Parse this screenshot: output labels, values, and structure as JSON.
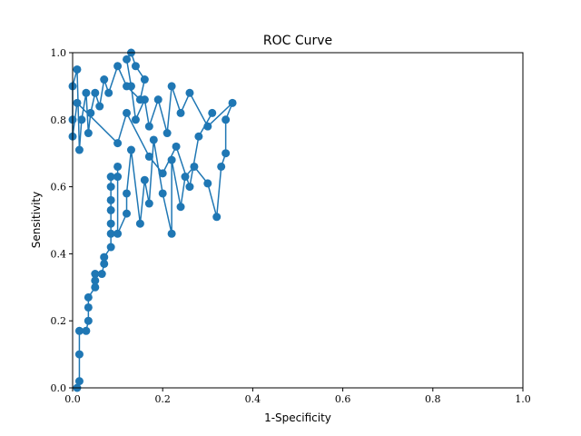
{
  "chart_data": {
    "type": "line",
    "title": "ROC Curve",
    "x_label": "1-Specificity",
    "y_label": "Sensitivity",
    "color": "#1f77b4",
    "markers": true,
    "grid": false,
    "xlim": [
      0,
      1
    ],
    "ylim": [
      0,
      1
    ],
    "xticks": [
      {
        "value": 0,
        "label": "0.0"
      },
      0.2,
      0.4,
      0.6,
      0.8,
      {
        "value": 1,
        "label": "1.0"
      }
    ],
    "yticks": [
      {
        "value": 0,
        "label": "0.0"
      },
      0.2,
      0.4,
      0.6,
      0.8,
      {
        "value": 1,
        "label": "1.0"
      }
    ],
    "x": [
      0.01,
      0.015,
      0.015,
      0.015,
      0.03,
      0.035,
      0.035,
      0.035,
      0.05,
      0.05,
      0.05,
      0.065,
      0.07,
      0.07,
      0.085,
      0.085,
      0.085,
      0.085,
      0.085,
      0.085,
      0.085,
      0.1,
      0.1,
      0.1,
      0.12,
      0.12,
      0.13,
      0.15,
      0.16,
      0.17,
      0.18,
      0.2,
      0.22,
      0.22,
      0.24,
      0.25,
      0.27,
      0.3,
      0.32,
      0.33,
      0.34,
      0.34,
      0.355,
      0.3,
      0.26,
      0.24,
      0.22,
      0.21,
      0.19,
      0.17,
      0.16,
      0.14,
      0.13,
      0.12,
      0.13,
      0.14,
      0.16,
      0.15,
      0.12,
      0.1,
      0.08,
      0.07,
      0.06,
      0.05,
      0.04,
      0.035,
      0.03,
      0.02,
      0.015,
      0.01,
      0.0,
      0.0,
      0.0,
      0.01,
      0.1,
      0.12,
      0.17,
      0.2,
      0.23,
      0.26,
      0.28,
      0.31
    ],
    "y": [
      0.0,
      0.02,
      0.1,
      0.17,
      0.17,
      0.2,
      0.24,
      0.27,
      0.3,
      0.32,
      0.34,
      0.34,
      0.37,
      0.39,
      0.42,
      0.46,
      0.49,
      0.53,
      0.56,
      0.6,
      0.63,
      0.63,
      0.66,
      0.46,
      0.52,
      0.58,
      0.71,
      0.49,
      0.62,
      0.55,
      0.74,
      0.58,
      0.46,
      0.68,
      0.54,
      0.63,
      0.66,
      0.61,
      0.51,
      0.66,
      0.7,
      0.8,
      0.85,
      0.78,
      0.88,
      0.82,
      0.9,
      0.76,
      0.86,
      0.78,
      0.86,
      0.8,
      0.9,
      0.98,
      1.0,
      0.96,
      0.92,
      0.86,
      0.9,
      0.96,
      0.88,
      0.92,
      0.84,
      0.88,
      0.82,
      0.76,
      0.88,
      0.8,
      0.71,
      0.95,
      0.9,
      0.8,
      0.75,
      0.85,
      0.73,
      0.82,
      0.69,
      0.64,
      0.72,
      0.6,
      0.75,
      0.82
    ]
  }
}
